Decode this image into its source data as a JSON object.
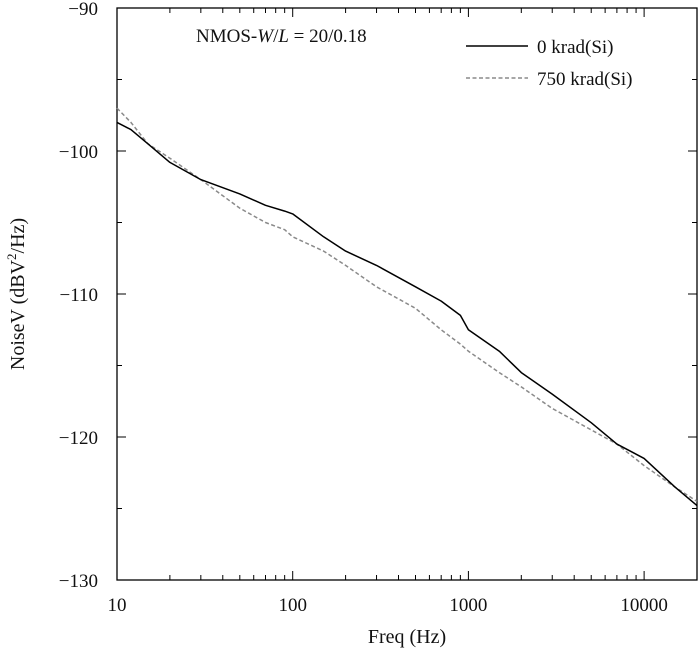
{
  "chart_data": {
    "type": "line",
    "title": "",
    "annotation": {
      "prefix": "NMOS-",
      "w": "W",
      "slash": "/",
      "l": "L",
      "suffix": " = 20/0.18"
    },
    "xlabel": "Freq (Hz)",
    "ylabel": {
      "main": "NoiseV (dBV",
      "sup": "2",
      "end": "/Hz)"
    },
    "xscale": "log",
    "xlim": [
      10,
      20000
    ],
    "ylim": [
      -130,
      -90
    ],
    "xticks": [
      10,
      100,
      1000,
      10000
    ],
    "xtick_labels": [
      "10",
      "100",
      "1000",
      "10000"
    ],
    "yticks": [
      -90,
      -100,
      -110,
      -120,
      -130
    ],
    "ytick_labels": [
      "−90",
      "−100",
      "−110",
      "−120",
      "−130"
    ],
    "grid": false,
    "legend_position": "top-right",
    "series": [
      {
        "name": "0 krad(Si)",
        "color": "#000000",
        "dash": "solid",
        "x": [
          10,
          12,
          15,
          20,
          30,
          50,
          70,
          90,
          100,
          150,
          200,
          300,
          500,
          700,
          900,
          1000,
          1500,
          2000,
          3000,
          5000,
          7000,
          10000,
          15000,
          20000
        ],
        "y": [
          -98,
          -98.5,
          -99.5,
          -100.8,
          -102,
          -103,
          -103.8,
          -104.2,
          -104.4,
          -106,
          -107,
          -108,
          -109.5,
          -110.5,
          -111.5,
          -112.5,
          -114,
          -115.5,
          -117,
          -119,
          -120.5,
          -121.5,
          -123.5,
          -124.8
        ]
      },
      {
        "name": "750 krad(Si)",
        "color": "#8a8a8a",
        "dash": "dashed",
        "x": [
          10,
          12,
          15,
          20,
          30,
          50,
          70,
          90,
          100,
          150,
          200,
          300,
          500,
          700,
          900,
          1000,
          1500,
          2000,
          3000,
          5000,
          7000,
          10000,
          15000,
          20000
        ],
        "y": [
          -97,
          -98,
          -99.5,
          -100.5,
          -102,
          -104,
          -105,
          -105.5,
          -106,
          -107,
          -108,
          -109.5,
          -111,
          -112.5,
          -113.5,
          -114,
          -115.5,
          -116.5,
          -118,
          -119.5,
          -120.5,
          -122,
          -123.5,
          -124.5
        ]
      }
    ]
  }
}
